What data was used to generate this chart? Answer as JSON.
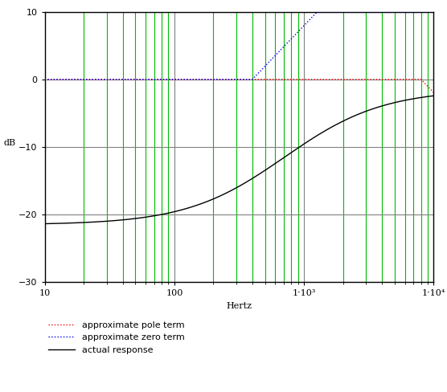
{
  "title": "",
  "xlabel": "Hertz",
  "ylabel": "dB",
  "ylim": [
    -30,
    10
  ],
  "yticks": [
    -30,
    -20,
    -10,
    0,
    10
  ],
  "xlim": [
    10,
    10000
  ],
  "bg_color": "#ffffff",
  "grid_major_color": "#808080",
  "grid_minor_color": "#00bb00",
  "pole_color": "#ff0000",
  "zero_color": "#0000ff",
  "actual_color": "#000000",
  "legend_labels": [
    "approximate pole term",
    "approximate zero term",
    "actual response"
  ],
  "pole_freq": 8000,
  "zero_freq": 400,
  "actual_low_db": -21.5,
  "actual_high_db": -1.5,
  "actual_mid_log": 2.85,
  "actual_slope": 0.38
}
